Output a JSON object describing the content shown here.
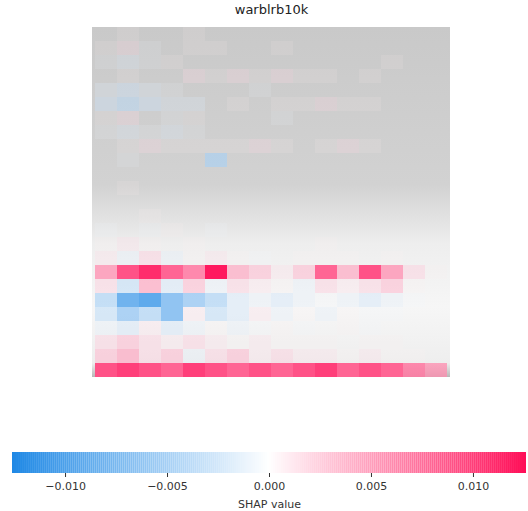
{
  "chart_data": {
    "type": "heatmap",
    "title": "warblrb10k",
    "tick_labels": false,
    "colors": [
      "#1e88e5",
      "#ffffff",
      "#ff0d57"
    ],
    "cells": [
      [
        0,
        0.001,
        0,
        0,
        0.001,
        0,
        0,
        0,
        0,
        0,
        0,
        0,
        0,
        0,
        0,
        0
      ],
      [
        0.001,
        0.002,
        -0.001,
        0,
        0.001,
        0.001,
        0,
        0,
        0.001,
        0,
        0,
        0,
        0,
        0,
        0,
        0
      ],
      [
        -0.001,
        -0.002,
        -0.001,
        0.001,
        0,
        0,
        0,
        0,
        0,
        0,
        0,
        0,
        0,
        0.001,
        0,
        0
      ],
      [
        0,
        0.001,
        0,
        0,
        0.002,
        0.001,
        0.002,
        0.001,
        0.002,
        0.001,
        0.001,
        0,
        0.001,
        0,
        0,
        0
      ],
      [
        -0.002,
        -0.003,
        -0.002,
        -0.001,
        0,
        0,
        0,
        -0.001,
        0,
        0,
        0,
        0,
        0,
        0,
        0,
        0
      ],
      [
        -0.003,
        -0.004,
        -0.003,
        -0.002,
        -0.002,
        0,
        0.001,
        0,
        0.001,
        0.001,
        0.002,
        0.001,
        0.001,
        0,
        0,
        0
      ],
      [
        0.001,
        0.002,
        0,
        -0.001,
        0.001,
        0,
        0,
        0,
        -0.001,
        0,
        0,
        0,
        0,
        0,
        0,
        0
      ],
      [
        -0.001,
        -0.002,
        -0.001,
        -0.002,
        -0.001,
        0,
        0,
        0,
        0,
        0,
        0,
        0,
        0,
        0,
        0,
        0
      ],
      [
        0,
        0.001,
        0.002,
        0.001,
        0.001,
        0.001,
        0.001,
        0.002,
        0.001,
        0,
        0.001,
        0.002,
        0.001,
        0,
        0,
        0
      ],
      [
        0,
        -0.001,
        0,
        0,
        0,
        -0.005,
        0,
        0,
        0,
        0,
        0,
        0,
        0,
        0,
        0,
        0
      ],
      [
        0,
        0,
        0,
        0,
        0,
        0,
        0,
        0,
        0,
        0,
        0,
        0,
        0,
        0,
        0,
        0
      ],
      [
        0,
        0.001,
        0,
        0,
        0,
        0,
        0,
        0,
        0,
        0,
        0,
        0,
        0,
        0,
        0,
        0
      ],
      [
        0,
        0,
        0,
        0,
        0,
        0,
        0,
        0,
        0,
        0,
        0,
        0,
        0,
        0,
        0,
        0
      ],
      [
        0,
        0,
        0.001,
        0,
        0,
        0,
        0,
        0,
        0,
        0,
        0,
        0,
        0,
        0,
        0,
        0
      ],
      [
        -0.001,
        0,
        -0.001,
        0.001,
        0,
        -0.001,
        0,
        0,
        0,
        0,
        0,
        0,
        0,
        0,
        0,
        0
      ],
      [
        0.001,
        0.002,
        0.001,
        0,
        0.001,
        0,
        0,
        0,
        0,
        0,
        0.001,
        0,
        0,
        0,
        0,
        0
      ],
      [
        0.002,
        -0.002,
        0.003,
        -0.002,
        0.001,
        0.002,
        0.001,
        -0.001,
        0,
        0.001,
        0.001,
        0.001,
        0,
        0.001,
        0,
        0
      ],
      [
        0.006,
        0.009,
        0.011,
        0.008,
        0.007,
        0.012,
        0.005,
        0.004,
        0.002,
        0.004,
        0.008,
        0.005,
        0.009,
        0.006,
        0.003,
        0.001
      ],
      [
        0.003,
        -0.004,
        0.005,
        -0.003,
        0.004,
        -0.002,
        0.003,
        0.002,
        0.001,
        -0.002,
        0.003,
        0.002,
        0.003,
        0.004,
        0.001,
        0
      ],
      [
        -0.005,
        -0.008,
        -0.009,
        -0.007,
        -0.006,
        -0.005,
        -0.003,
        -0.002,
        -0.003,
        -0.002,
        -0.001,
        -0.002,
        -0.003,
        -0.002,
        -0.001,
        0
      ],
      [
        -0.004,
        -0.006,
        -0.005,
        -0.007,
        0.002,
        -0.004,
        -0.003,
        0.002,
        -0.002,
        0.001,
        -0.002,
        0.001,
        -0.001,
        -0.001,
        0,
        0
      ],
      [
        -0.002,
        -0.003,
        0.002,
        -0.003,
        -0.002,
        0.001,
        -0.002,
        -0.001,
        0.001,
        -0.001,
        0,
        0.001,
        -0.001,
        0,
        0,
        0
      ],
      [
        0.003,
        0.004,
        0.003,
        0.002,
        0.003,
        0.002,
        0.001,
        0.002,
        0.001,
        0.001,
        0.001,
        0,
        0.001,
        0.001,
        0,
        0
      ],
      [
        0.004,
        0.005,
        0.003,
        0.004,
        -0.002,
        0.003,
        0.004,
        0.002,
        0.003,
        0.002,
        0.002,
        0.001,
        0.002,
        0.001,
        0.001,
        0
      ],
      [
        0.009,
        0.01,
        0.009,
        0.008,
        0.01,
        0.009,
        0.008,
        0.009,
        0.008,
        0.009,
        0.01,
        0.008,
        0.009,
        0.008,
        0.007,
        0.006
      ]
    ],
    "colorbar": {
      "label": "SHAP value",
      "range": [
        -0.0126,
        0.0126
      ],
      "ticks": [
        {
          "value": -0.01,
          "label": "−0.010"
        },
        {
          "value": -0.005,
          "label": "−0.005"
        },
        {
          "value": 0,
          "label": "0.000"
        },
        {
          "value": 0.005,
          "label": "0.005"
        },
        {
          "value": 0.01,
          "label": "0.010"
        }
      ]
    }
  }
}
